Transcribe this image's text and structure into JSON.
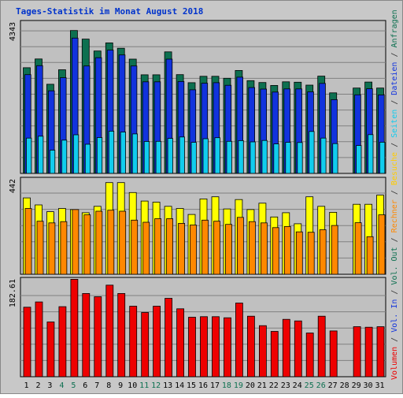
{
  "title": "Tages-Statistik im Monat August 2018",
  "chart_data": [
    {
      "type": "bar",
      "panel": "top",
      "ymax_label": "4343",
      "ylim": [
        0,
        4343
      ],
      "categories": [
        "1",
        "2",
        "3",
        "4",
        "5",
        "6",
        "7",
        "8",
        "9",
        "10",
        "11",
        "12",
        "13",
        "14",
        "15",
        "16",
        "17",
        "18",
        "19",
        "20",
        "21",
        "22",
        "23",
        "24",
        "25",
        "26",
        "27",
        "28",
        "29",
        "30",
        "31"
      ],
      "series": [
        {
          "name": "Anfragen",
          "color": "#0d7050",
          "values": [
            3065,
            3320,
            2585,
            3005,
            4145,
            3895,
            3550,
            3785,
            3630,
            3315,
            2860,
            2860,
            3525,
            2865,
            2630,
            2815,
            2815,
            2760,
            2985,
            2690,
            2635,
            2550,
            2655,
            2645,
            2560,
            2820,
            2335,
            null,
            2475,
            2650,
            2475
          ]
        },
        {
          "name": "Dateien",
          "color": "#1133dd",
          "values": [
            2865,
            3125,
            2395,
            2775,
            3925,
            3115,
            3355,
            3575,
            3435,
            3115,
            2655,
            2655,
            3315,
            2665,
            2425,
            2615,
            2630,
            2555,
            2790,
            2490,
            2445,
            2360,
            2450,
            2450,
            2365,
            2610,
            2140,
            null,
            2280,
            2455,
            2275
          ]
        },
        {
          "name": "Seiten",
          "color": "#11ccee",
          "values": [
            1025,
            1080,
            675,
            965,
            1120,
            845,
            1040,
            1225,
            1200,
            1145,
            925,
            930,
            1015,
            1055,
            900,
            1005,
            1035,
            930,
            950,
            915,
            955,
            855,
            900,
            895,
            1215,
            1025,
            865,
            null,
            810,
            1125,
            905
          ]
        }
      ]
    },
    {
      "type": "bar",
      "panel": "middle",
      "ymax_label": "442",
      "ylim": [
        0,
        442
      ],
      "categories": [
        "1",
        "2",
        "3",
        "4",
        "5",
        "6",
        "7",
        "8",
        "9",
        "10",
        "11",
        "12",
        "13",
        "14",
        "15",
        "16",
        "17",
        "18",
        "19",
        "20",
        "21",
        "22",
        "23",
        "24",
        "25",
        "26",
        "27",
        "28",
        "29",
        "30",
        "31"
      ],
      "series": [
        {
          "name": "Besuche",
          "color": "#ffff00",
          "values": [
            360,
            327,
            295,
            310,
            305,
            290,
            320,
            432,
            432,
            385,
            345,
            340,
            320,
            310,
            282,
            355,
            365,
            308,
            352,
            305,
            335,
            270,
            290,
            238,
            365,
            320,
            292,
            null,
            330,
            330,
            373
          ]
        },
        {
          "name": "Rechner",
          "color": "#ff8800",
          "values": [
            310,
            250,
            242,
            248,
            305,
            280,
            297,
            302,
            297,
            255,
            245,
            262,
            262,
            240,
            232,
            255,
            250,
            235,
            268,
            248,
            242,
            220,
            225,
            200,
            198,
            210,
            230,
            null,
            243,
            177,
            280
          ]
        }
      ]
    },
    {
      "type": "bar",
      "panel": "bottom",
      "ymax_label": "182.61",
      "ylim": [
        0,
        182.61
      ],
      "categories": [
        "1",
        "2",
        "3",
        "4",
        "5",
        "6",
        "7",
        "8",
        "9",
        "10",
        "11",
        "12",
        "13",
        "14",
        "15",
        "16",
        "17",
        "18",
        "19",
        "20",
        "21",
        "22",
        "23",
        "24",
        "25",
        "26",
        "27",
        "28",
        "29",
        "30",
        "31"
      ],
      "series": [
        {
          "name": "Volumen",
          "color": "#ee0000",
          "values": [
            132,
            142,
            104,
            133,
            185,
            158,
            152,
            174,
            158,
            134,
            122,
            134,
            149,
            129,
            113,
            114,
            114,
            112,
            140,
            115,
            97,
            86,
            109,
            106,
            83,
            115,
            87,
            null,
            95,
            94,
            95
          ]
        }
      ]
    }
  ],
  "y_axis_legend": [
    {
      "text": "Volumen",
      "color": "#ee0000"
    },
    {
      "text": " / ",
      "color": "#333333"
    },
    {
      "text": "Vol. In",
      "color": "#1133dd"
    },
    {
      "text": " / ",
      "color": "#333333"
    },
    {
      "text": "Vol. Out",
      "color": "#0d7050"
    },
    {
      "text": " / ",
      "color": "#333333"
    },
    {
      "text": "Rechner",
      "color": "#ff8800"
    },
    {
      "text": " / ",
      "color": "#333333"
    },
    {
      "text": "Besuche",
      "color": "#ffcc00"
    },
    {
      "text": " / ",
      "color": "#333333"
    },
    {
      "text": "Seiten",
      "color": "#11ccee"
    },
    {
      "text": " / ",
      "color": "#333333"
    },
    {
      "text": "Dateien",
      "color": "#1133dd"
    },
    {
      "text": " / ",
      "color": "#333333"
    },
    {
      "text": "Anfragen",
      "color": "#0d7050"
    }
  ],
  "x_labels": [
    {
      "text": "1",
      "color": "#000000"
    },
    {
      "text": "2",
      "color": "#000000"
    },
    {
      "text": "3",
      "color": "#000000"
    },
    {
      "text": "4",
      "color": "#0d7050"
    },
    {
      "text": "5",
      "color": "#0d7050"
    },
    {
      "text": "6",
      "color": "#000000"
    },
    {
      "text": "7",
      "color": "#000000"
    },
    {
      "text": "8",
      "color": "#000000"
    },
    {
      "text": "9",
      "color": "#000000"
    },
    {
      "text": "10",
      "color": "#000000"
    },
    {
      "text": "11",
      "color": "#0d7050"
    },
    {
      "text": "12",
      "color": "#0d7050"
    },
    {
      "text": "13",
      "color": "#000000"
    },
    {
      "text": "14",
      "color": "#000000"
    },
    {
      "text": "15",
      "color": "#000000"
    },
    {
      "text": "16",
      "color": "#000000"
    },
    {
      "text": "17",
      "color": "#000000"
    },
    {
      "text": "18",
      "color": "#0d7050"
    },
    {
      "text": "19",
      "color": "#0d7050"
    },
    {
      "text": "20",
      "color": "#000000"
    },
    {
      "text": "21",
      "color": "#000000"
    },
    {
      "text": "22",
      "color": "#000000"
    },
    {
      "text": "23",
      "color": "#000000"
    },
    {
      "text": "24",
      "color": "#000000"
    },
    {
      "text": "25",
      "color": "#0d7050"
    },
    {
      "text": "26",
      "color": "#0d7050"
    },
    {
      "text": "27",
      "color": "#000000"
    },
    {
      "text": "28",
      "color": "#000000"
    },
    {
      "text": "29",
      "color": "#000000"
    },
    {
      "text": "30",
      "color": "#000000"
    },
    {
      "text": "31",
      "color": "#000000"
    }
  ],
  "colors": {
    "panel_bg": "#c0c0c0",
    "outer_bg": "#c8c8c8",
    "grid": "#808080"
  }
}
